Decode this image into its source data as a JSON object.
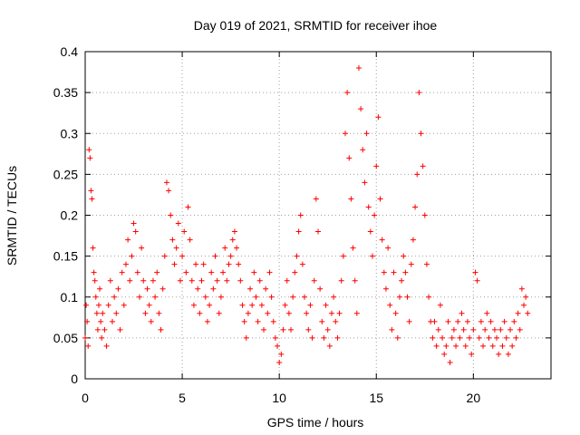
{
  "chart_data": {
    "type": "scatter",
    "title": "Day 019 of 2021, SRMTID for receiver ihoe",
    "xlabel": "GPS time / hours",
    "ylabel": "SRMTID / TECUs",
    "xlim": [
      0,
      24
    ],
    "ylim": [
      0,
      0.4
    ],
    "xticks": [
      0,
      5,
      10,
      15,
      20
    ],
    "xtick_labels": [
      "0",
      "5",
      "10",
      "15",
      "20"
    ],
    "yticks": [
      0,
      0.05,
      0.1,
      0.15,
      0.2,
      0.25,
      0.3,
      0.35,
      0.4
    ],
    "ytick_labels": [
      "0",
      "0.05",
      "0.1",
      "0.15",
      "0.2",
      "0.25",
      "0.3",
      "0.35",
      "0.4"
    ],
    "grid": true,
    "marker": "+",
    "color": "#ff0000",
    "series": [
      {
        "name": "SRMTID",
        "points": [
          [
            0.0,
            0.05
          ],
          [
            0.05,
            0.09
          ],
          [
            0.1,
            0.07
          ],
          [
            0.15,
            0.04
          ],
          [
            0.2,
            0.28
          ],
          [
            0.25,
            0.27
          ],
          [
            0.3,
            0.23
          ],
          [
            0.35,
            0.22
          ],
          [
            0.4,
            0.16
          ],
          [
            0.45,
            0.13
          ],
          [
            0.5,
            0.12
          ],
          [
            0.55,
            0.1
          ],
          [
            0.6,
            0.08
          ],
          [
            0.65,
            0.06
          ],
          [
            0.7,
            0.09
          ],
          [
            0.75,
            0.11
          ],
          [
            0.8,
            0.07
          ],
          [
            0.85,
            0.05
          ],
          [
            0.9,
            0.08
          ],
          [
            1.0,
            0.06
          ],
          [
            1.1,
            0.04
          ],
          [
            1.2,
            0.09
          ],
          [
            1.3,
            0.12
          ],
          [
            1.4,
            0.07
          ],
          [
            1.5,
            0.1
          ],
          [
            1.6,
            0.08
          ],
          [
            1.7,
            0.11
          ],
          [
            1.8,
            0.06
          ],
          [
            1.9,
            0.13
          ],
          [
            2.0,
            0.09
          ],
          [
            2.1,
            0.14
          ],
          [
            2.2,
            0.17
          ],
          [
            2.3,
            0.12
          ],
          [
            2.4,
            0.15
          ],
          [
            2.5,
            0.19
          ],
          [
            2.6,
            0.18
          ],
          [
            2.7,
            0.13
          ],
          [
            2.8,
            0.1
          ],
          [
            2.9,
            0.16
          ],
          [
            3.0,
            0.12
          ],
          [
            3.1,
            0.08
          ],
          [
            3.2,
            0.11
          ],
          [
            3.3,
            0.09
          ],
          [
            3.4,
            0.07
          ],
          [
            3.5,
            0.12
          ],
          [
            3.6,
            0.1
          ],
          [
            3.7,
            0.13
          ],
          [
            3.8,
            0.08
          ],
          [
            3.9,
            0.06
          ],
          [
            4.0,
            0.11
          ],
          [
            4.1,
            0.15
          ],
          [
            4.2,
            0.24
          ],
          [
            4.3,
            0.23
          ],
          [
            4.4,
            0.2
          ],
          [
            4.5,
            0.17
          ],
          [
            4.6,
            0.14
          ],
          [
            4.7,
            0.16
          ],
          [
            4.8,
            0.19
          ],
          [
            4.9,
            0.12
          ],
          [
            5.0,
            0.15
          ],
          [
            5.1,
            0.18
          ],
          [
            5.2,
            0.13
          ],
          [
            5.3,
            0.21
          ],
          [
            5.4,
            0.17
          ],
          [
            5.5,
            0.12
          ],
          [
            5.6,
            0.09
          ],
          [
            5.7,
            0.14
          ],
          [
            5.8,
            0.11
          ],
          [
            5.9,
            0.08
          ],
          [
            6.0,
            0.12
          ],
          [
            6.1,
            0.14
          ],
          [
            6.2,
            0.1
          ],
          [
            6.3,
            0.07
          ],
          [
            6.4,
            0.09
          ],
          [
            6.5,
            0.13
          ],
          [
            6.6,
            0.11
          ],
          [
            6.7,
            0.15
          ],
          [
            6.8,
            0.12
          ],
          [
            6.9,
            0.08
          ],
          [
            7.0,
            0.1
          ],
          [
            7.1,
            0.13
          ],
          [
            7.2,
            0.16
          ],
          [
            7.3,
            0.12
          ],
          [
            7.4,
            0.14
          ],
          [
            7.5,
            0.15
          ],
          [
            7.6,
            0.17
          ],
          [
            7.7,
            0.18
          ],
          [
            7.8,
            0.16
          ],
          [
            7.9,
            0.14
          ],
          [
            8.0,
            0.12
          ],
          [
            8.1,
            0.09
          ],
          [
            8.2,
            0.07
          ],
          [
            8.3,
            0.05
          ],
          [
            8.4,
            0.08
          ],
          [
            8.5,
            0.11
          ],
          [
            8.6,
            0.09
          ],
          [
            8.7,
            0.13
          ],
          [
            8.8,
            0.1
          ],
          [
            8.9,
            0.07
          ],
          [
            9.0,
            0.12
          ],
          [
            9.1,
            0.09
          ],
          [
            9.2,
            0.06
          ],
          [
            9.3,
            0.11
          ],
          [
            9.4,
            0.08
          ],
          [
            9.5,
            0.13
          ],
          [
            9.6,
            0.1
          ],
          [
            9.7,
            0.07
          ],
          [
            9.8,
            0.05
          ],
          [
            9.9,
            0.04
          ],
          [
            10.0,
            0.02
          ],
          [
            10.1,
            0.03
          ],
          [
            10.2,
            0.06
          ],
          [
            10.3,
            0.09
          ],
          [
            10.4,
            0.12
          ],
          [
            10.5,
            0.08
          ],
          [
            10.6,
            0.06
          ],
          [
            10.7,
            0.1
          ],
          [
            10.8,
            0.13
          ],
          [
            10.9,
            0.15
          ],
          [
            11.0,
            0.18
          ],
          [
            11.1,
            0.2
          ],
          [
            11.2,
            0.14
          ],
          [
            11.3,
            0.1
          ],
          [
            11.4,
            0.08
          ],
          [
            11.5,
            0.06
          ],
          [
            11.6,
            0.09
          ],
          [
            11.7,
            0.05
          ],
          [
            11.8,
            0.12
          ],
          [
            11.9,
            0.22
          ],
          [
            12.0,
            0.18
          ],
          [
            12.1,
            0.11
          ],
          [
            12.2,
            0.07
          ],
          [
            12.3,
            0.05
          ],
          [
            12.4,
            0.09
          ],
          [
            12.5,
            0.06
          ],
          [
            12.6,
            0.04
          ],
          [
            12.7,
            0.08
          ],
          [
            12.8,
            0.1
          ],
          [
            12.9,
            0.07
          ],
          [
            13.0,
            0.05
          ],
          [
            13.1,
            0.08
          ],
          [
            13.2,
            0.12
          ],
          [
            13.3,
            0.15
          ],
          [
            13.4,
            0.3
          ],
          [
            13.5,
            0.35
          ],
          [
            13.6,
            0.27
          ],
          [
            13.7,
            0.22
          ],
          [
            13.8,
            0.16
          ],
          [
            13.9,
            0.12
          ],
          [
            14.0,
            0.08
          ],
          [
            14.1,
            0.38
          ],
          [
            14.2,
            0.33
          ],
          [
            14.3,
            0.28
          ],
          [
            14.4,
            0.24
          ],
          [
            14.5,
            0.3
          ],
          [
            14.6,
            0.21
          ],
          [
            14.7,
            0.18
          ],
          [
            14.8,
            0.15
          ],
          [
            14.9,
            0.2
          ],
          [
            15.0,
            0.26
          ],
          [
            15.1,
            0.32
          ],
          [
            15.2,
            0.22
          ],
          [
            15.3,
            0.17
          ],
          [
            15.4,
            0.13
          ],
          [
            15.5,
            0.11
          ],
          [
            15.6,
            0.16
          ],
          [
            15.7,
            0.09
          ],
          [
            15.8,
            0.06
          ],
          [
            15.9,
            0.13
          ],
          [
            16.0,
            0.08
          ],
          [
            16.1,
            0.05
          ],
          [
            16.2,
            0.1
          ],
          [
            16.3,
            0.12
          ],
          [
            16.4,
            0.15
          ],
          [
            16.5,
            0.13
          ],
          [
            16.6,
            0.1
          ],
          [
            16.7,
            0.07
          ],
          [
            16.8,
            0.14
          ],
          [
            16.9,
            0.17
          ],
          [
            17.0,
            0.21
          ],
          [
            17.1,
            0.25
          ],
          [
            17.2,
            0.35
          ],
          [
            17.3,
            0.3
          ],
          [
            17.4,
            0.26
          ],
          [
            17.5,
            0.2
          ],
          [
            17.6,
            0.14
          ],
          [
            17.7,
            0.1
          ],
          [
            17.8,
            0.07
          ],
          [
            17.9,
            0.05
          ],
          [
            18.0,
            0.07
          ],
          [
            18.1,
            0.04
          ],
          [
            18.2,
            0.06
          ],
          [
            18.3,
            0.09
          ],
          [
            18.4,
            0.05
          ],
          [
            18.5,
            0.03
          ],
          [
            18.6,
            0.04
          ],
          [
            18.7,
            0.07
          ],
          [
            18.8,
            0.02
          ],
          [
            18.9,
            0.05
          ],
          [
            19.0,
            0.06
          ],
          [
            19.1,
            0.04
          ],
          [
            19.2,
            0.07
          ],
          [
            19.3,
            0.05
          ],
          [
            19.4,
            0.08
          ],
          [
            19.5,
            0.06
          ],
          [
            19.6,
            0.04
          ],
          [
            19.7,
            0.07
          ],
          [
            19.8,
            0.05
          ],
          [
            19.9,
            0.03
          ],
          [
            20.0,
            0.06
          ],
          [
            20.1,
            0.13
          ],
          [
            20.2,
            0.12
          ],
          [
            20.3,
            0.05
          ],
          [
            20.4,
            0.07
          ],
          [
            20.5,
            0.04
          ],
          [
            20.6,
            0.06
          ],
          [
            20.7,
            0.08
          ],
          [
            20.8,
            0.05
          ],
          [
            20.9,
            0.07
          ],
          [
            21.0,
            0.04
          ],
          [
            21.1,
            0.06
          ],
          [
            21.2,
            0.05
          ],
          [
            21.3,
            0.03
          ],
          [
            21.4,
            0.06
          ],
          [
            21.5,
            0.04
          ],
          [
            21.6,
            0.07
          ],
          [
            21.7,
            0.05
          ],
          [
            21.8,
            0.03
          ],
          [
            21.9,
            0.06
          ],
          [
            22.0,
            0.04
          ],
          [
            22.1,
            0.07
          ],
          [
            22.2,
            0.05
          ],
          [
            22.3,
            0.08
          ],
          [
            22.4,
            0.06
          ],
          [
            22.5,
            0.11
          ],
          [
            22.6,
            0.09
          ],
          [
            22.7,
            0.1
          ],
          [
            22.8,
            0.08
          ]
        ]
      }
    ]
  }
}
